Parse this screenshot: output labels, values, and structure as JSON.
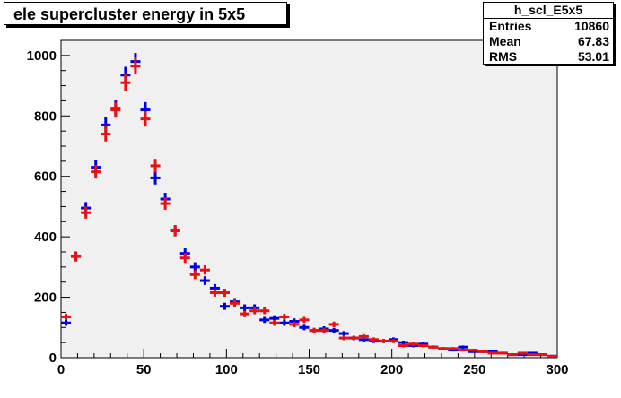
{
  "title": "ele supercluster energy in 5x5",
  "stats": {
    "name": "h_scl_E5x5",
    "rows": [
      {
        "label": "Entries",
        "value": "10860"
      },
      {
        "label": "Mean",
        "value": "67.83"
      },
      {
        "label": "RMS",
        "value": "53.01"
      }
    ]
  },
  "chart_data": {
    "type": "scatter",
    "title": "ele supercluster energy in 5x5",
    "xlabel": "",
    "ylabel": "",
    "xlim": [
      0,
      300
    ],
    "ylim": [
      0,
      1050
    ],
    "xticks": [
      0,
      50,
      100,
      150,
      200,
      250,
      300
    ],
    "yticks": [
      0,
      200,
      400,
      600,
      800,
      1000
    ],
    "bin_width": 6,
    "grid": false,
    "colors": {
      "blue": "#0000e0",
      "red": "#e81010"
    },
    "series": [
      {
        "x": [
          3,
          9,
          15,
          21,
          27,
          33,
          39,
          45,
          51,
          57,
          63,
          69,
          75,
          81,
          87,
          93,
          99,
          105,
          111,
          117,
          123,
          129,
          135,
          141,
          147,
          153,
          159,
          165,
          171,
          177,
          183,
          189,
          195,
          201,
          207,
          213,
          219,
          225,
          231,
          237,
          243,
          249,
          255,
          261,
          267,
          273,
          279,
          285,
          291,
          297
        ],
        "values": [
          115,
          335,
          495,
          630,
          770,
          825,
          935,
          980,
          820,
          595,
          525,
          420,
          345,
          300,
          255,
          230,
          170,
          185,
          165,
          165,
          125,
          130,
          115,
          120,
          100,
          90,
          95,
          90,
          80,
          65,
          60,
          55,
          55,
          60,
          50,
          40,
          45,
          35,
          30,
          25,
          35,
          20,
          20,
          20,
          15,
          10,
          10,
          15,
          10,
          5
        ],
        "color": "blue"
      },
      {
        "x": [
          3,
          9,
          15,
          21,
          27,
          33,
          39,
          45,
          51,
          57,
          63,
          69,
          75,
          81,
          87,
          93,
          99,
          105,
          111,
          117,
          123,
          129,
          135,
          141,
          147,
          153,
          159,
          165,
          171,
          177,
          183,
          189,
          195,
          201,
          207,
          213,
          219,
          225,
          231,
          237,
          243,
          249,
          255,
          261,
          267,
          273,
          279,
          285,
          291,
          297
        ],
        "values": [
          135,
          335,
          480,
          615,
          740,
          820,
          910,
          965,
          790,
          635,
          510,
          420,
          330,
          275,
          290,
          215,
          215,
          180,
          145,
          155,
          155,
          115,
          135,
          110,
          125,
          90,
          90,
          110,
          65,
          65,
          70,
          60,
          55,
          55,
          40,
          45,
          40,
          35,
          30,
          30,
          25,
          25,
          20,
          15,
          15,
          10,
          15,
          10,
          10,
          5
        ],
        "color": "red"
      }
    ]
  }
}
